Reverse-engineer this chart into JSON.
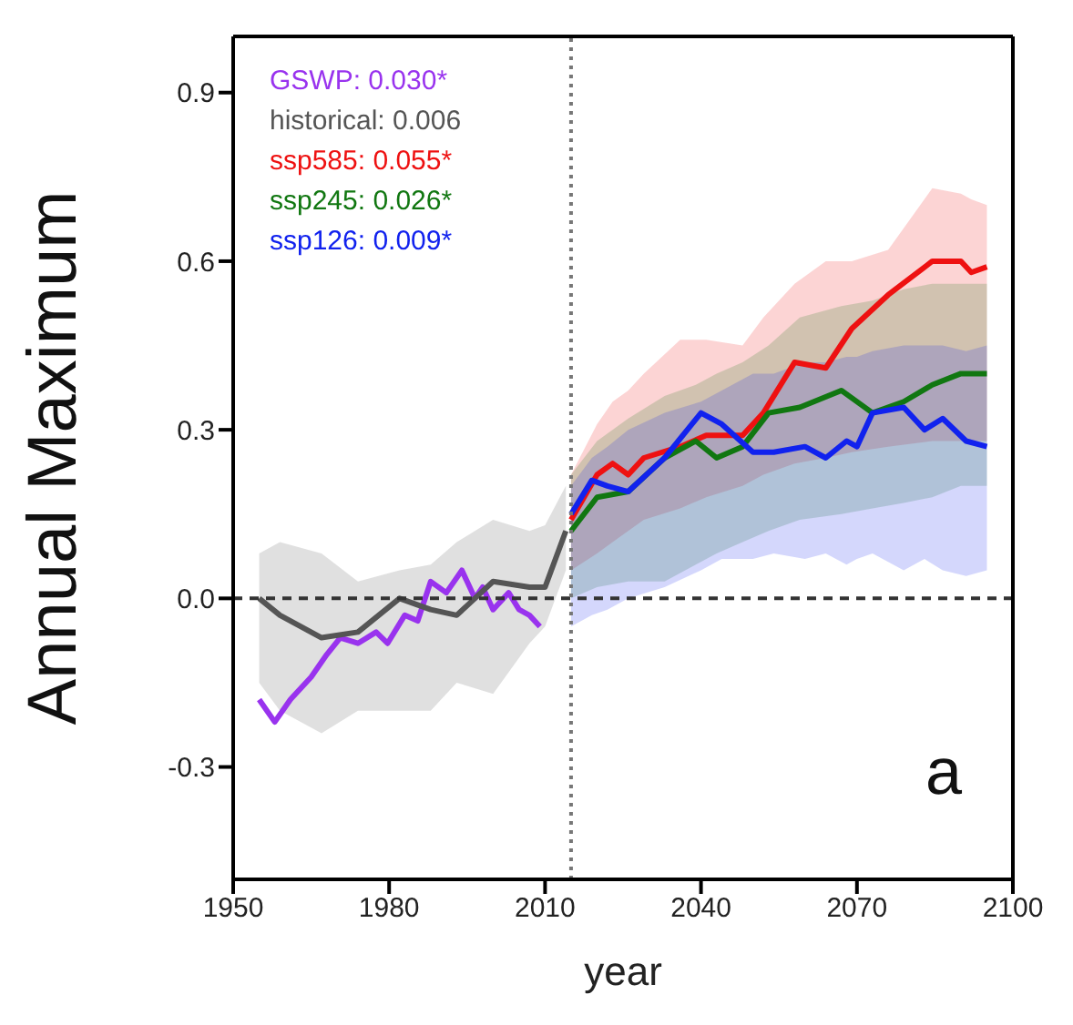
{
  "chart_data": {
    "type": "line",
    "xlabel": "year",
    "ylabel": "Annual Maximum",
    "annotations": [
      "a"
    ],
    "xlim": [
      1950,
      2100
    ],
    "xticks": [
      1950,
      1980,
      2010,
      2040,
      2070,
      2100
    ],
    "ylim": [
      -0.5,
      1.0
    ],
    "yticks": [
      {
        "value": -0.3,
        "label": "-0.3"
      },
      {
        "value": 0,
        "label": "0.0"
      },
      {
        "value": 0.3,
        "label": "0.3"
      },
      {
        "value": 0.6,
        "label": "0.6"
      },
      {
        "value": 0.9,
        "label": "0.9"
      }
    ],
    "grid": false,
    "legend": "top left",
    "marker": "none",
    "line_style": "solid",
    "ref_lines": [
      {
        "axis": "y",
        "value": 0,
        "line_style": "dashed",
        "color": "#333333"
      },
      {
        "axis": "x",
        "value": 2015,
        "line_style": "dotted",
        "color": "#777777"
      }
    ],
    "series": [
      {
        "name": "GSWP: 0.030*",
        "color": "#9933ee",
        "x": [
          1955,
          1958,
          1961,
          1965,
          1968,
          1970.6,
          1974,
          1977.5,
          1979.7,
          1983,
          1985.5,
          1988,
          1991,
          1994,
          1996.5,
          1998,
          2000,
          2003,
          2005,
          2007,
          2009
        ],
        "values": [
          -0.18,
          -0.22,
          -0.18,
          -0.14,
          -0.1,
          -0.07,
          -0.08,
          -0.06,
          -0.08,
          -0.03,
          -0.04,
          0.03,
          0.01,
          0.05,
          0,
          0.02,
          -0.02,
          0.01,
          -0.02,
          -0.03,
          -0.05
        ]
      },
      {
        "name": "historical: 0.006",
        "color": "#555555",
        "x": [
          1955,
          1959,
          1967,
          1974,
          1982,
          1988,
          1993,
          2000,
          2007,
          2010,
          2014
        ],
        "values": [
          0,
          -0.03,
          -0.07,
          -0.06,
          0,
          -0.02,
          -0.03,
          0.03,
          0.02,
          0.02,
          0.12
        ],
        "lower": [
          -0.15,
          -0.2,
          -0.24,
          -0.2,
          -0.2,
          -0.2,
          -0.15,
          -0.17,
          -0.08,
          -0.05,
          0.05
        ],
        "upper": [
          0.08,
          0.1,
          0.08,
          0.03,
          0.05,
          0.06,
          0.1,
          0.14,
          0.12,
          0.13,
          0.2
        ]
      },
      {
        "name": "ssp585: 0.055*",
        "color": "#ee1111",
        "x": [
          2015,
          2020,
          2023,
          2026,
          2029,
          2036,
          2041,
          2048,
          2052,
          2058,
          2064,
          2069,
          2076,
          2084.5,
          2090,
          2092,
          2095
        ],
        "values": [
          0.14,
          0.22,
          0.24,
          0.22,
          0.25,
          0.27,
          0.29,
          0.29,
          0.33,
          0.42,
          0.41,
          0.48,
          0.54,
          0.6,
          0.6,
          0.58,
          0.59
        ],
        "lower": [
          0.05,
          0.08,
          0.1,
          0.12,
          0.14,
          0.16,
          0.18,
          0.2,
          0.22,
          0.24,
          0.25,
          0.26,
          0.27,
          0.28,
          0.28,
          0.28,
          0.28
        ],
        "upper": [
          0.22,
          0.31,
          0.35,
          0.37,
          0.4,
          0.46,
          0.46,
          0.45,
          0.5,
          0.56,
          0.6,
          0.6,
          0.62,
          0.73,
          0.72,
          0.71,
          0.7
        ]
      },
      {
        "name": "ssp245: 0.026*",
        "color": "#117711",
        "x": [
          2015,
          2020,
          2026,
          2033,
          2039,
          2043,
          2048,
          2053,
          2059,
          2067,
          2073,
          2079,
          2084.5,
          2090,
          2095
        ],
        "values": [
          0.12,
          0.18,
          0.19,
          0.25,
          0.28,
          0.25,
          0.27,
          0.33,
          0.34,
          0.37,
          0.33,
          0.35,
          0.38,
          0.4,
          0.4
        ],
        "lower": [
          0,
          0.02,
          0.03,
          0.03,
          0.06,
          0.08,
          0.1,
          0.12,
          0.14,
          0.15,
          0.16,
          0.17,
          0.18,
          0.2,
          0.2
        ],
        "upper": [
          0.22,
          0.28,
          0.32,
          0.36,
          0.38,
          0.4,
          0.42,
          0.45,
          0.5,
          0.52,
          0.53,
          0.55,
          0.56,
          0.56,
          0.56
        ]
      },
      {
        "name": "ssp126: 0.009*",
        "color": "#1122ee",
        "x": [
          2015,
          2019,
          2022,
          2026,
          2033,
          2040,
          2044,
          2050,
          2054,
          2060,
          2064,
          2068,
          2070,
          2073,
          2079,
          2083,
          2086.5,
          2091,
          2095
        ],
        "values": [
          0.15,
          0.21,
          0.2,
          0.19,
          0.25,
          0.33,
          0.31,
          0.26,
          0.26,
          0.27,
          0.25,
          0.28,
          0.27,
          0.33,
          0.34,
          0.3,
          0.32,
          0.28,
          0.27
        ],
        "lower": [
          -0.05,
          -0.03,
          -0.02,
          0,
          0.02,
          0.05,
          0.07,
          0.07,
          0.08,
          0.07,
          0.08,
          0.06,
          0.07,
          0.08,
          0.05,
          0.07,
          0.05,
          0.04,
          0.05
        ],
        "upper": [
          0.2,
          0.25,
          0.27,
          0.3,
          0.33,
          0.35,
          0.37,
          0.4,
          0.4,
          0.42,
          0.42,
          0.43,
          0.43,
          0.44,
          0.45,
          0.45,
          0.45,
          0.44,
          0.45
        ]
      }
    ]
  }
}
